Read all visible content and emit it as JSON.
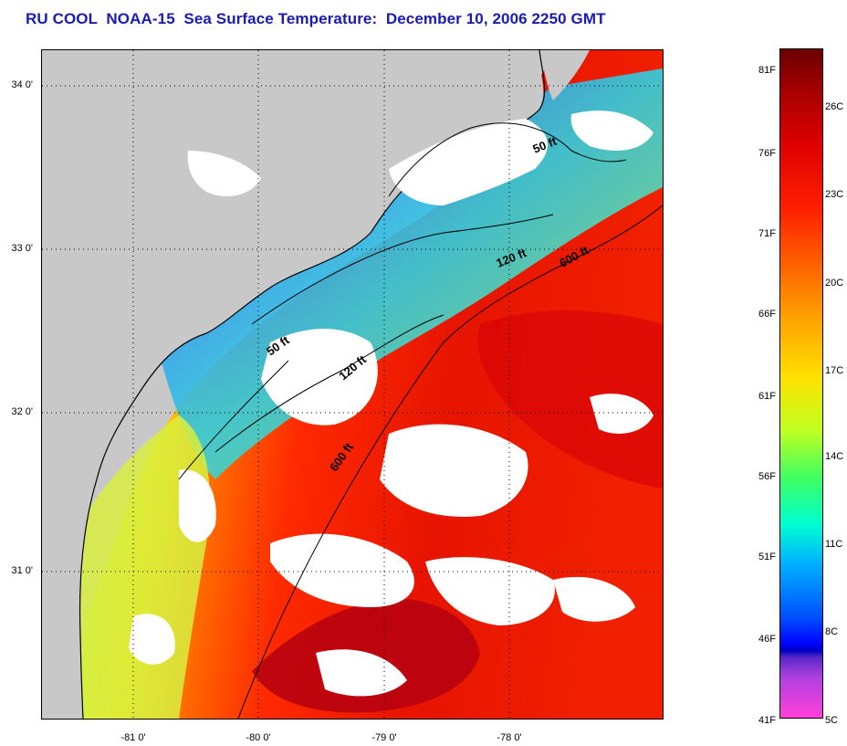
{
  "title": "RU COOL  NOAA-15  Sea Surface Temperature:  December 10, 2006 2250 GMT",
  "map": {
    "lat_labels": [
      "34 0'",
      "33 0'",
      "32 0'",
      "31 0'"
    ],
    "lon_labels": [
      "-81 0'",
      "-80 0'",
      "-79 0'",
      "-78 0'"
    ],
    "isobaths": [
      "50 ft",
      "120 ft",
      "600 ft",
      "50 ft",
      "120 ft",
      "600 ft"
    ]
  },
  "colorbar": {
    "fahrenheit": [
      "81F",
      "76F",
      "71F",
      "66F",
      "61F",
      "56F",
      "51F",
      "46F",
      "41F"
    ],
    "celsius": [
      "26C",
      "23C",
      "20C",
      "17C",
      "14C",
      "11C",
      "8C",
      "5C"
    ]
  },
  "colors": {
    "title": "#1a1ab4",
    "land": "#c8c8c8",
    "cloud": "#ffffff",
    "warm": "#dd1100",
    "cool": "#2255ff"
  }
}
